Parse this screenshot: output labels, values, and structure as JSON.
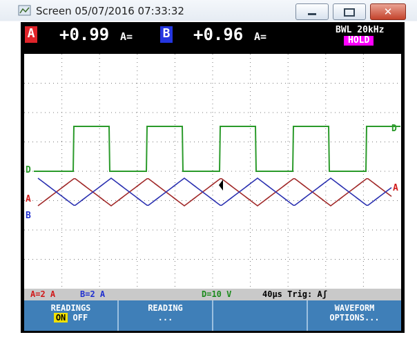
{
  "window": {
    "title": "Screen 05/07/2016 07:33:32"
  },
  "readout": {
    "a": {
      "channel": "A",
      "value": "+0.99",
      "unit": "A="
    },
    "b": {
      "channel": "B",
      "value": "+0.96",
      "unit": "A="
    },
    "bandwidth": "BWL 20kHz",
    "status": "HOLD"
  },
  "traces": {
    "d": "D",
    "a": "A",
    "b": "B"
  },
  "status_bar": {
    "a_scale": "A=2 A",
    "b_scale": "B=2 A",
    "d_scale": "D=10 V",
    "timebase": "40µs Trig: Aʃ"
  },
  "softkeys": [
    {
      "line1": "READINGS",
      "on": "ON",
      "off": "OFF"
    },
    {
      "line1": "READING",
      "line2": "..."
    },
    {
      "line1": "WAVEFORM",
      "line2": "OPTIONS..."
    }
  ]
}
